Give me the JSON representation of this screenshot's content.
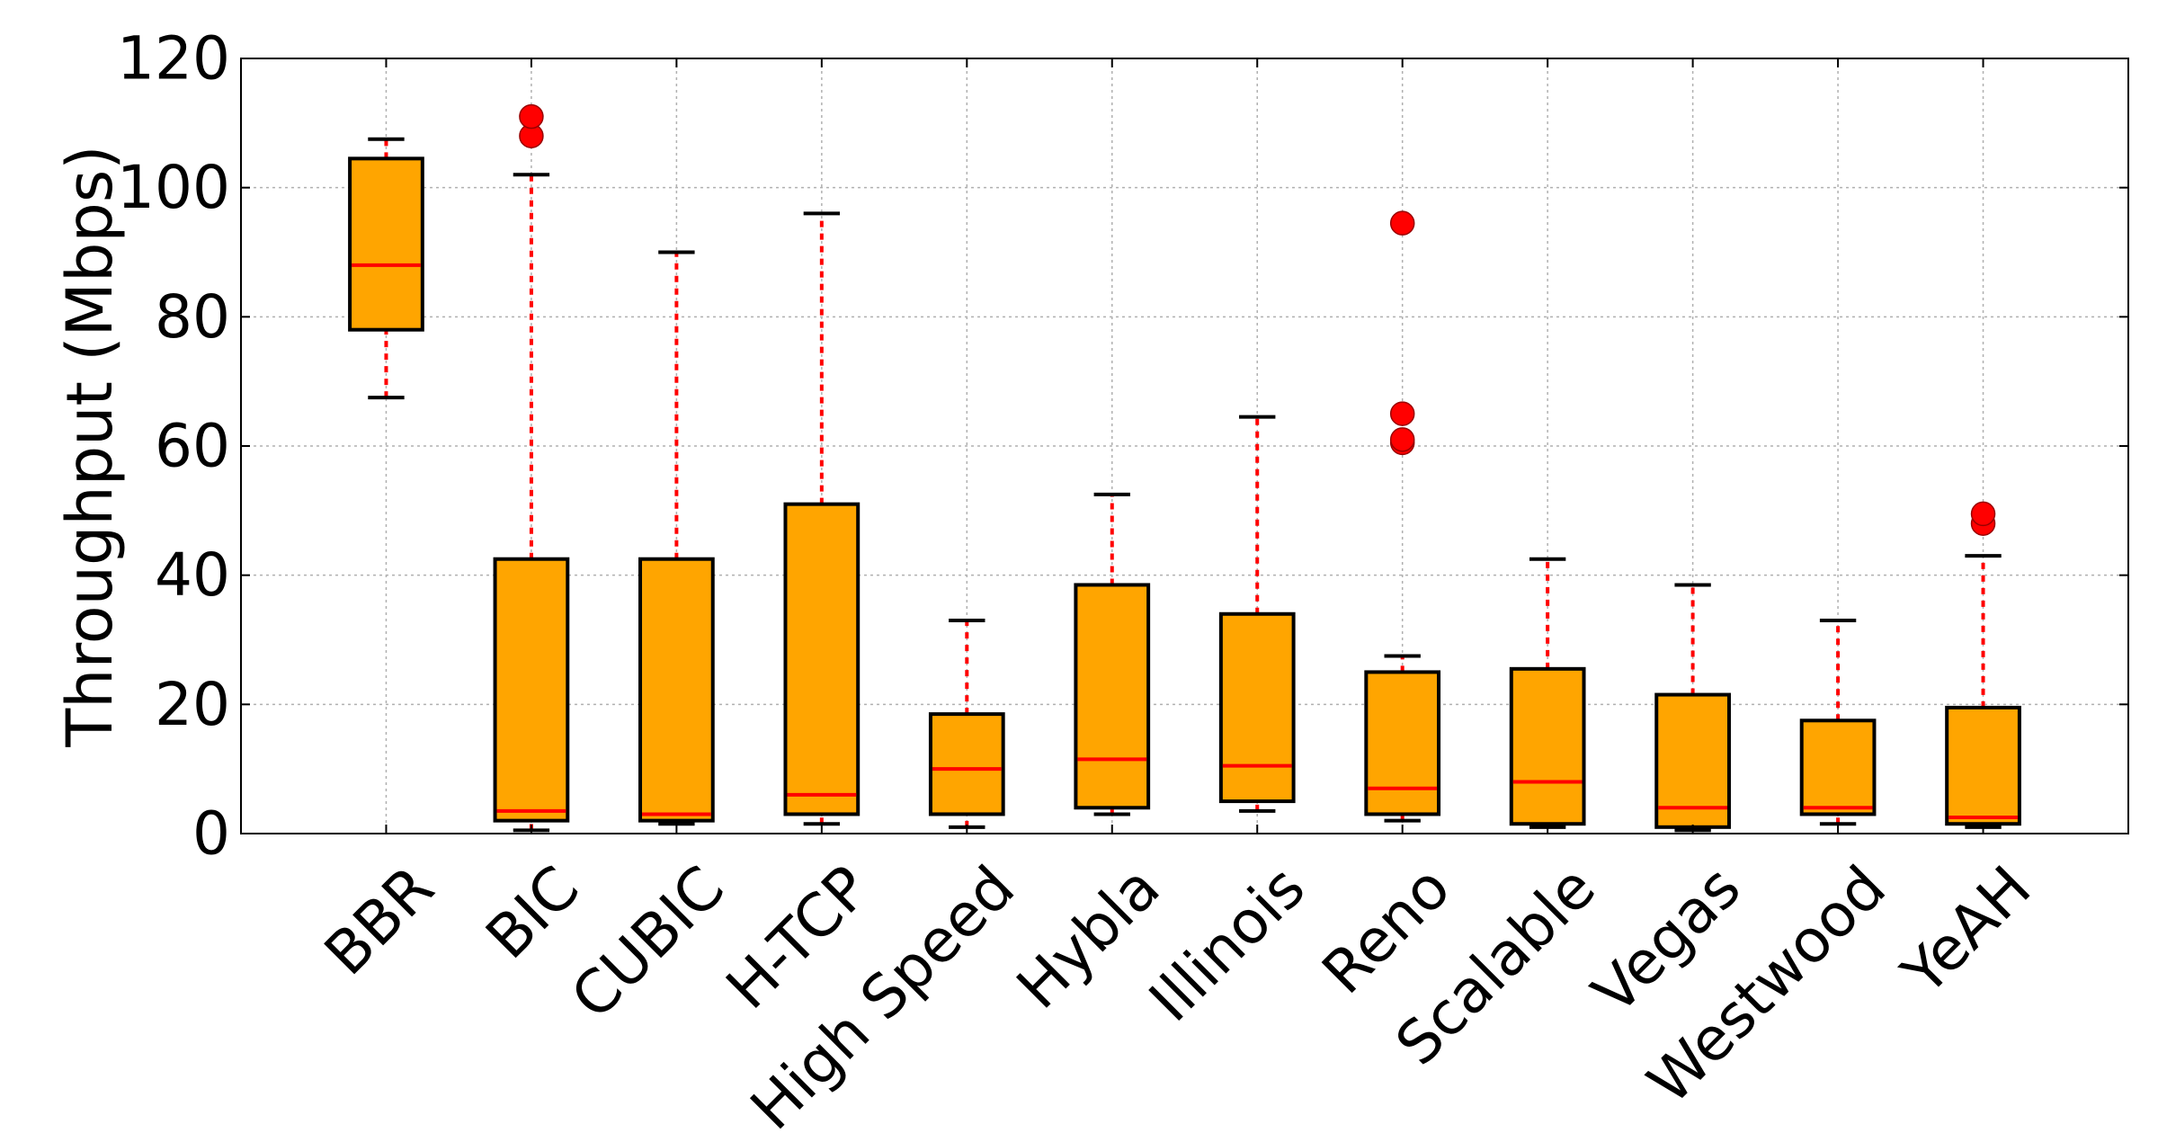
{
  "chart_data": {
    "type": "box",
    "title": "",
    "xlabel": "",
    "ylabel": "Throughput (Mbps)",
    "ylim": [
      0,
      120
    ],
    "yticks": [
      0,
      20,
      40,
      60,
      80,
      100,
      120
    ],
    "grid": true,
    "categories": [
      "BBR",
      "BIC",
      "CUBIC",
      "H-TCP",
      "High Speed",
      "Hybla",
      "Illinois",
      "Reno",
      "Scalable",
      "Vegas",
      "Westwood",
      "YeAH"
    ],
    "boxes": [
      {
        "whisker_low": 67.5,
        "q1": 78.0,
        "median": 88.0,
        "q3": 104.5,
        "whisker_high": 107.5,
        "outliers": []
      },
      {
        "whisker_low": 0.5,
        "q1": 2.0,
        "median": 3.5,
        "q3": 42.5,
        "whisker_high": 102.0,
        "outliers": [
          108.0,
          111.0
        ]
      },
      {
        "whisker_low": 1.5,
        "q1": 2.0,
        "median": 3.0,
        "q3": 42.5,
        "whisker_high": 90.0,
        "outliers": []
      },
      {
        "whisker_low": 1.5,
        "q1": 3.0,
        "median": 6.0,
        "q3": 51.0,
        "whisker_high": 96.0,
        "outliers": []
      },
      {
        "whisker_low": 1.0,
        "q1": 3.0,
        "median": 10.0,
        "q3": 18.5,
        "whisker_high": 33.0,
        "outliers": []
      },
      {
        "whisker_low": 3.0,
        "q1": 4.0,
        "median": 11.5,
        "q3": 38.5,
        "whisker_high": 52.5,
        "outliers": []
      },
      {
        "whisker_low": 3.5,
        "q1": 5.0,
        "median": 10.5,
        "q3": 34.0,
        "whisker_high": 64.5,
        "outliers": []
      },
      {
        "whisker_low": 2.0,
        "q1": 3.0,
        "median": 7.0,
        "q3": 25.0,
        "whisker_high": 27.5,
        "outliers": [
          60.5,
          61.0,
          65.0,
          94.5
        ]
      },
      {
        "whisker_low": 1.0,
        "q1": 1.5,
        "median": 8.0,
        "q3": 25.5,
        "whisker_high": 42.5,
        "outliers": []
      },
      {
        "whisker_low": 0.5,
        "q1": 1.0,
        "median": 4.0,
        "q3": 21.5,
        "whisker_high": 38.5,
        "outliers": []
      },
      {
        "whisker_low": 1.5,
        "q1": 3.0,
        "median": 4.0,
        "q3": 17.5,
        "whisker_high": 33.0,
        "outliers": []
      },
      {
        "whisker_low": 1.0,
        "q1": 1.5,
        "median": 2.5,
        "q3": 19.5,
        "whisker_high": 43.0,
        "outliers": [
          48.0,
          49.5
        ]
      }
    ],
    "colors": {
      "box_fill": "#FFA500",
      "box_edge": "#000000",
      "median": "#FF0000",
      "whisker": "#FF0000",
      "cap": "#000000",
      "outlier": "#FF0000",
      "grid": "#B0B0B0"
    }
  }
}
